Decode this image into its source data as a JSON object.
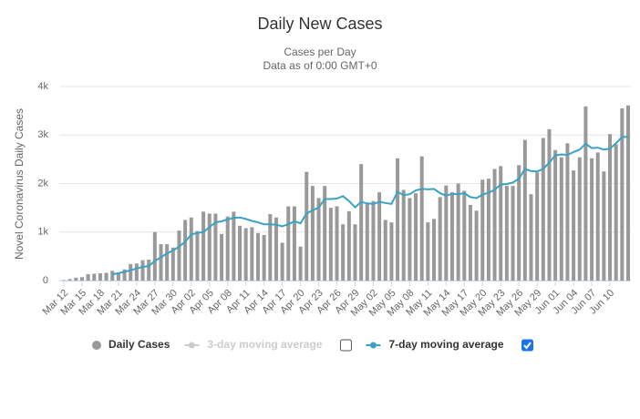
{
  "chart_data": {
    "type": "bar-line",
    "title": "Daily New Cases",
    "subtitle": [
      "Cases per Day",
      "Data as of 0:00 GMT+0"
    ],
    "y_label": "Novel Coronavirus Daily Cases",
    "categories": [
      "Mar 12",
      null,
      null,
      "Mar 15",
      null,
      null,
      "Mar 18",
      null,
      null,
      "Mar 21",
      null,
      null,
      "Mar 24",
      null,
      null,
      "Mar 27",
      null,
      null,
      "Mar 30",
      null,
      null,
      "Apr 02",
      null,
      null,
      "Apr 05",
      null,
      null,
      "Apr 08",
      null,
      null,
      "Apr 11",
      null,
      null,
      "Apr 14",
      null,
      null,
      "Apr 17",
      null,
      null,
      "Apr 20",
      null,
      null,
      "Apr 23",
      null,
      null,
      "Apr 26",
      null,
      null,
      "Apr 29",
      null,
      null,
      "May 02",
      null,
      null,
      "May 05",
      null,
      null,
      "May 08",
      null,
      null,
      "May 11",
      null,
      null,
      "May 14",
      null,
      null,
      "May 17",
      null,
      null,
      "May 20",
      null,
      null,
      "May 23",
      null,
      null,
      "May 26",
      null,
      null,
      "May 29",
      null,
      null,
      "Jun 01",
      null,
      null,
      "Jun 04",
      null,
      null,
      "Jun 07",
      null,
      null,
      "Jun 10",
      null,
      null,
      null
    ],
    "series": [
      {
        "name": "Daily Cases",
        "kind": "bar",
        "color": "#999999",
        "values": [
          10,
          30,
          60,
          70,
          130,
          140,
          150,
          160,
          200,
          170,
          230,
          340,
          350,
          420,
          430,
          1000,
          750,
          750,
          680,
          1030,
          1250,
          1300,
          1020,
          1420,
          1380,
          1380,
          960,
          1320,
          1420,
          1130,
          1080,
          1100,
          980,
          940,
          1370,
          1300,
          780,
          1530,
          1530,
          700,
          2240,
          1950,
          1700,
          1950,
          1500,
          1530,
          1160,
          1430,
          1160,
          2400,
          1600,
          1640,
          1820,
          1250,
          1200,
          2520,
          1870,
          1700,
          1800,
          2560,
          1200,
          1270,
          1720,
          1960,
          1820,
          2000,
          1850,
          1560,
          1440,
          2080,
          2100,
          2300,
          2360,
          1950,
          1950,
          2380,
          2900,
          1780,
          2230,
          2940,
          3120,
          2690,
          2540,
          2830,
          2270,
          2540,
          3590,
          2520,
          2640,
          2250,
          3020,
          2810,
          3550,
          3610
        ]
      },
      {
        "name": "3-day moving average",
        "kind": "line",
        "color": "#cccccc",
        "hidden": true,
        "checked": false
      },
      {
        "name": "7-day moving average",
        "kind": "line",
        "color": "#3aa3c4",
        "checked": true,
        "values": [
          null,
          null,
          null,
          null,
          null,
          null,
          null,
          null,
          130,
          150,
          180,
          210,
          250,
          280,
          300,
          400,
          480,
          560,
          620,
          700,
          800,
          950,
          980,
          1000,
          1100,
          1200,
          1220,
          1260,
          1290,
          1300,
          1270,
          1230,
          1200,
          1160,
          1160,
          1150,
          1120,
          1160,
          1220,
          1180,
          1380,
          1450,
          1500,
          1680,
          1680,
          1690,
          1740,
          1640,
          1510,
          1620,
          1590,
          1580,
          1620,
          1600,
          1580,
          1830,
          1760,
          1780,
          1860,
          1890,
          1880,
          1890,
          1800,
          1750,
          1790,
          1780,
          1800,
          1720,
          1700,
          1770,
          1810,
          1870,
          1980,
          1990,
          2020,
          2100,
          2300,
          2260,
          2250,
          2300,
          2430,
          2580,
          2600,
          2590,
          2650,
          2700,
          2820,
          2730,
          2740,
          2700,
          2720,
          2830,
          2960,
          2960
        ]
      }
    ],
    "ylim": [
      0,
      4000
    ],
    "yticks": [
      0,
      {
        "value": 1000,
        "label": "1k"
      },
      {
        "value": 2000,
        "label": "2k"
      },
      {
        "value": 3000,
        "label": "3k"
      },
      {
        "value": 4000,
        "label": "4k"
      }
    ],
    "grid": true
  }
}
